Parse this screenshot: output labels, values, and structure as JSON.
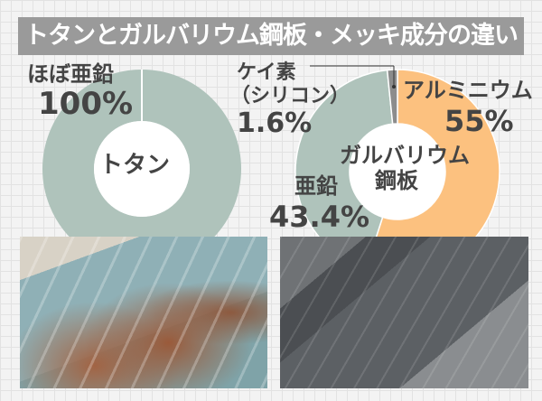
{
  "title": "トタンとガルバリウム鋼板・メッキ成分の違い",
  "chart_data": [
    {
      "type": "pie",
      "donut": true,
      "center_label": "トタン",
      "slices": [
        {
          "label": "ほぼ亜鉛",
          "value": 100,
          "value_label": "100%",
          "color": "#afc3bb"
        }
      ]
    },
    {
      "type": "pie",
      "donut": true,
      "center_label": "ガルバリウム鋼板",
      "center_label_lines": [
        "ガルバリウム",
        "鋼板"
      ],
      "slices": [
        {
          "label": "アルミニウム",
          "value": 55,
          "value_label": "55%",
          "color": "#fcc17f"
        },
        {
          "label": "亜鉛",
          "value": 43.4,
          "value_label": "43.4%",
          "color": "#afc3bb"
        },
        {
          "label": "ケイ素（シリコン）",
          "label_lines": [
            "ケイ素",
            "（シリコン）"
          ],
          "value": 1.6,
          "value_label": "1.6%",
          "color": "#8c8c8c"
        }
      ]
    }
  ],
  "photos": [
    {
      "subject": "rusted-tin-roof"
    },
    {
      "subject": "galvalume-roof"
    }
  ]
}
